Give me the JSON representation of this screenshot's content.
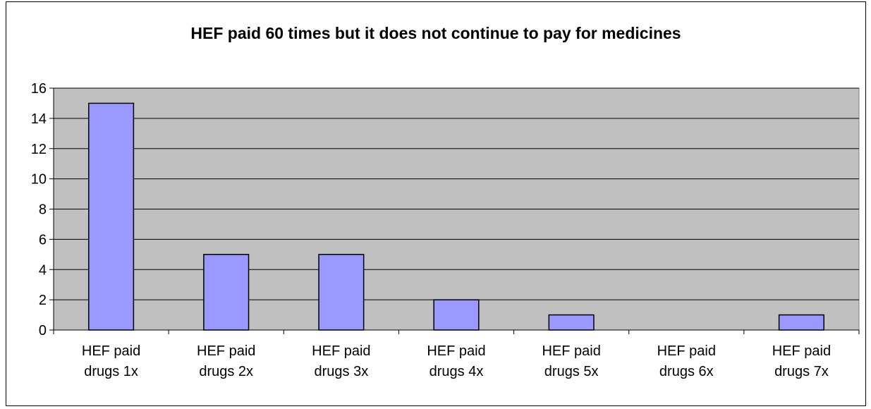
{
  "chart_data": {
    "type": "bar",
    "title": "HEF paid 60 times but it does not continue to pay for medicines",
    "xlabel": "",
    "ylabel": "",
    "categories": [
      [
        "HEF paid",
        "drugs 1x"
      ],
      [
        "HEF paid",
        "drugs 2x"
      ],
      [
        "HEF paid",
        "drugs 3x"
      ],
      [
        "HEF paid",
        "drugs 4x"
      ],
      [
        "HEF paid",
        "drugs 5x"
      ],
      [
        "HEF paid",
        "drugs 6x"
      ],
      [
        "HEF paid",
        "drugs 7x"
      ]
    ],
    "values": [
      15,
      5,
      5,
      2,
      1,
      0,
      1
    ],
    "ylim": [
      0,
      16
    ],
    "yticks": [
      0,
      2,
      4,
      6,
      8,
      10,
      12,
      14,
      16
    ],
    "grid": true,
    "legend": "none",
    "colors": {
      "bar_fill": "#9999ff",
      "bar_stroke": "#000000",
      "plot_background": "#c0c0c0",
      "gridline": "#000000"
    }
  }
}
